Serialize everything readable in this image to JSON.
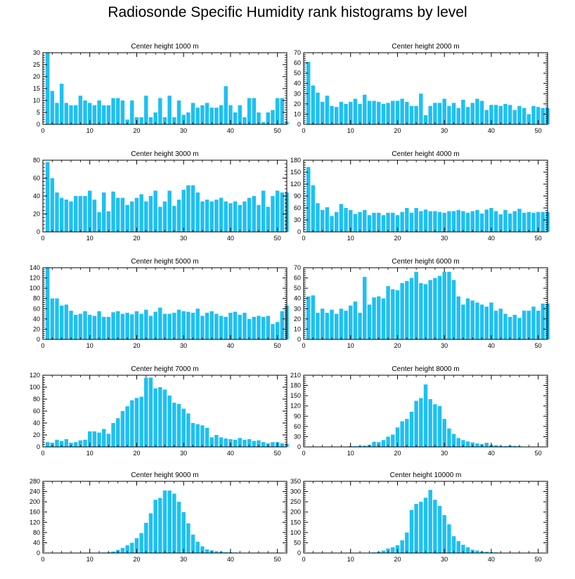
{
  "figure": {
    "title": "Radiosonde Specific Humidity rank histograms by level",
    "bar_color": "#1ec0f2",
    "axis_color": "#000000"
  },
  "chart_data": [
    {
      "type": "bar",
      "title": "Center height 1000 m",
      "xlim": [
        0,
        52
      ],
      "ylim": [
        0,
        30
      ],
      "xticks": [
        0,
        10,
        20,
        30,
        40,
        50
      ],
      "yticks": [
        0,
        5,
        10,
        15,
        20,
        25,
        30
      ],
      "x_start": 1,
      "values": [
        30,
        14,
        9,
        17,
        9,
        8,
        8,
        12,
        10,
        9,
        8,
        10,
        8,
        8,
        11,
        11,
        10,
        2,
        10,
        3,
        3,
        12,
        3,
        5,
        11,
        3,
        12,
        3,
        10,
        4,
        5,
        9,
        7,
        8,
        9,
        7,
        7,
        8,
        16,
        8,
        5,
        8,
        3,
        11,
        11,
        5,
        1,
        5,
        6,
        11,
        11,
        1
      ]
    },
    {
      "type": "bar",
      "title": "Center height 2000 m",
      "xlim": [
        0,
        52
      ],
      "ylim": [
        0,
        70
      ],
      "xticks": [
        0,
        10,
        20,
        30,
        40,
        50
      ],
      "yticks": [
        0,
        10,
        20,
        30,
        40,
        50,
        60,
        70
      ],
      "x_start": 1,
      "values": [
        61,
        38,
        31,
        22,
        28,
        18,
        17,
        22,
        20,
        22,
        25,
        20,
        29,
        23,
        23,
        22,
        20,
        21,
        23,
        23,
        25,
        22,
        18,
        18,
        30,
        9,
        18,
        21,
        21,
        25,
        18,
        21,
        16,
        24,
        17,
        21,
        25,
        23,
        14,
        19,
        19,
        18,
        20,
        19,
        14,
        18,
        16,
        10,
        18,
        17,
        16,
        16
      ]
    },
    {
      "type": "bar",
      "title": "Center height 3000 m",
      "xlim": [
        0,
        52
      ],
      "ylim": [
        0,
        80
      ],
      "xticks": [
        0,
        10,
        20,
        30,
        40,
        50
      ],
      "yticks": [
        0,
        20,
        40,
        60,
        80
      ],
      "x_start": 1,
      "values": [
        78,
        60,
        44,
        38,
        36,
        34,
        40,
        40,
        40,
        46,
        36,
        22,
        44,
        23,
        45,
        38,
        38,
        30,
        34,
        38,
        42,
        34,
        40,
        46,
        28,
        34,
        46,
        29,
        36,
        47,
        52,
        52,
        44,
        34,
        36,
        34,
        36,
        38,
        34,
        32,
        34,
        30,
        34,
        38,
        40,
        30,
        46,
        28,
        40,
        46,
        44,
        44
      ]
    },
    {
      "type": "bar",
      "title": "Center height 4000 m",
      "xlim": [
        0,
        52
      ],
      "ylim": [
        0,
        180
      ],
      "xticks": [
        0,
        10,
        20,
        30,
        40,
        50
      ],
      "yticks": [
        0,
        30,
        60,
        90,
        120,
        150,
        180
      ],
      "x_start": 1,
      "values": [
        163,
        117,
        72,
        55,
        62,
        40,
        50,
        70,
        60,
        55,
        45,
        50,
        55,
        42,
        48,
        48,
        42,
        48,
        48,
        42,
        50,
        60,
        48,
        60,
        52,
        56,
        52,
        52,
        50,
        48,
        52,
        52,
        55,
        52,
        48,
        52,
        55,
        46,
        56,
        60,
        52,
        44,
        55,
        46,
        52,
        58,
        48,
        50,
        48,
        50,
        50,
        50
      ]
    },
    {
      "type": "bar",
      "title": "Center height 5000 m",
      "xlim": [
        0,
        52
      ],
      "ylim": [
        0,
        140
      ],
      "xticks": [
        0,
        10,
        20,
        30,
        40,
        50
      ],
      "yticks": [
        0,
        20,
        40,
        60,
        80,
        100,
        120,
        140
      ],
      "x_start": 1,
      "values": [
        140,
        80,
        80,
        66,
        68,
        56,
        48,
        50,
        55,
        48,
        46,
        55,
        44,
        44,
        53,
        55,
        50,
        52,
        49,
        55,
        50,
        58,
        46,
        54,
        62,
        50,
        50,
        52,
        58,
        55,
        54,
        52,
        60,
        46,
        52,
        55,
        50,
        46,
        44,
        52,
        54,
        48,
        52,
        40,
        44,
        46,
        44,
        46,
        30,
        34,
        55,
        66
      ]
    },
    {
      "type": "bar",
      "title": "Center height 6000 m",
      "xlim": [
        0,
        52
      ],
      "ylim": [
        0,
        70
      ],
      "xticks": [
        0,
        10,
        20,
        30,
        40,
        50
      ],
      "yticks": [
        0,
        10,
        20,
        30,
        40,
        50,
        60,
        70
      ],
      "x_start": 1,
      "values": [
        42,
        43,
        26,
        30,
        26,
        29,
        25,
        30,
        28,
        33,
        37,
        26,
        61,
        34,
        41,
        42,
        40,
        52,
        49,
        48,
        55,
        57,
        60,
        66,
        55,
        54,
        58,
        60,
        62,
        66,
        66,
        58,
        42,
        34,
        40,
        38,
        36,
        34,
        32,
        36,
        28,
        30,
        25,
        22,
        24,
        21,
        28,
        28,
        32,
        28,
        35,
        35
      ]
    },
    {
      "type": "bar",
      "title": "Center height 7000 m",
      "xlim": [
        0,
        52
      ],
      "ylim": [
        0,
        120
      ],
      "xticks": [
        0,
        10,
        20,
        30,
        40,
        50
      ],
      "yticks": [
        0,
        20,
        40,
        60,
        80,
        100,
        120
      ],
      "x_start": 1,
      "values": [
        8,
        7,
        12,
        10,
        13,
        7,
        8,
        11,
        12,
        26,
        26,
        24,
        30,
        22,
        40,
        48,
        60,
        68,
        78,
        82,
        84,
        116,
        116,
        98,
        100,
        96,
        86,
        74,
        72,
        64,
        56,
        40,
        38,
        36,
        32,
        16,
        20,
        16,
        14,
        13,
        12,
        15,
        12,
        13,
        10,
        11,
        8,
        6,
        8,
        8,
        6,
        5
      ]
    },
    {
      "type": "bar",
      "title": "Center height 8000 m",
      "xlim": [
        0,
        52
      ],
      "ylim": [
        0,
        210
      ],
      "xticks": [
        0,
        10,
        20,
        30,
        40,
        50
      ],
      "yticks": [
        0,
        30,
        60,
        90,
        120,
        150,
        180,
        210
      ],
      "x_start": 1,
      "values": [
        0,
        0,
        0,
        0,
        0,
        0,
        0,
        1,
        1,
        2,
        2,
        3,
        4,
        6,
        15,
        14,
        20,
        30,
        36,
        57,
        75,
        82,
        103,
        135,
        143,
        183,
        140,
        125,
        120,
        82,
        54,
        38,
        26,
        20,
        16,
        13,
        10,
        8,
        12,
        6,
        5,
        3,
        2,
        4,
        3,
        2,
        1,
        1,
        0,
        1,
        0,
        0
      ]
    },
    {
      "type": "bar",
      "title": "Center height 9000 m",
      "xlim": [
        0,
        52
      ],
      "ylim": [
        0,
        280
      ],
      "xticks": [
        0,
        10,
        20,
        30,
        40,
        50
      ],
      "yticks": [
        0,
        40,
        80,
        120,
        160,
        200,
        240,
        280
      ],
      "x_start": 1,
      "values": [
        0,
        0,
        0,
        0,
        0,
        0,
        0,
        0,
        0,
        0,
        1,
        1,
        2,
        3,
        6,
        12,
        20,
        30,
        40,
        58,
        78,
        118,
        155,
        208,
        215,
        244,
        244,
        232,
        200,
        160,
        116,
        72,
        44,
        26,
        14,
        10,
        7,
        5,
        3,
        3,
        2,
        1,
        1,
        1,
        1,
        0,
        0,
        0,
        0,
        0,
        0,
        0
      ]
    },
    {
      "type": "bar",
      "title": "Center height 10000 m",
      "xlim": [
        0,
        52
      ],
      "ylim": [
        0,
        350
      ],
      "xticks": [
        0,
        10,
        20,
        30,
        40,
        50
      ],
      "yticks": [
        0,
        50,
        100,
        150,
        200,
        250,
        300,
        350
      ],
      "x_start": 1,
      "values": [
        0,
        0,
        0,
        0,
        0,
        0,
        0,
        0,
        0,
        0,
        0,
        0,
        0,
        1,
        3,
        6,
        12,
        22,
        28,
        38,
        62,
        100,
        210,
        240,
        250,
        270,
        308,
        260,
        230,
        185,
        140,
        82,
        58,
        40,
        28,
        16,
        12,
        8,
        6,
        4,
        3,
        2,
        1,
        1,
        1,
        0,
        0,
        0,
        0,
        0,
        0,
        0
      ]
    }
  ]
}
